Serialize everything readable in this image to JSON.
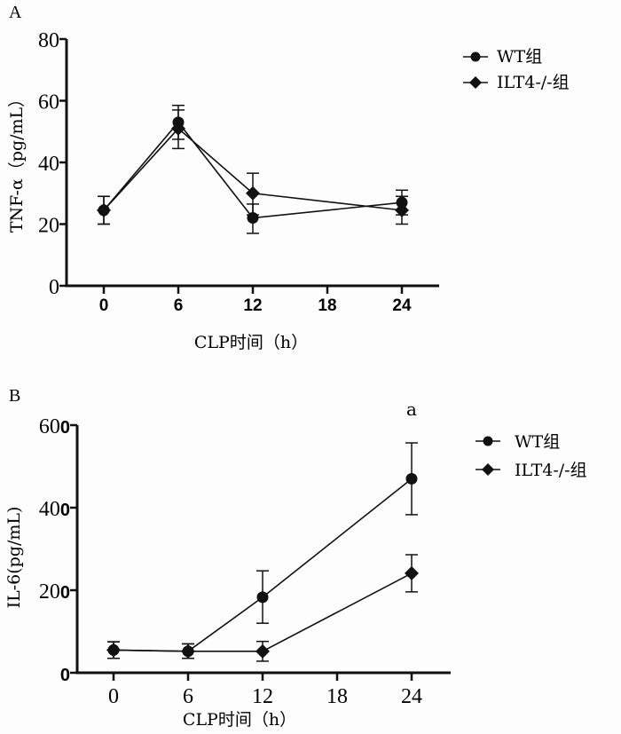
{
  "chart_data": [
    {
      "panel": "A",
      "type": "line",
      "title": "",
      "xlabel": "CLP时间（h）",
      "ylabel": "TNF-α（pg/mL）",
      "xlim": [
        -3,
        28
      ],
      "ylim": [
        0,
        80
      ],
      "xticks": [
        "0",
        "6",
        "12",
        "18",
        "24"
      ],
      "yticks": [
        "0",
        "20",
        "40",
        "60",
        "80"
      ],
      "x": [
        0,
        6,
        12,
        24
      ],
      "series": [
        {
          "name": "WT组",
          "marker": "circle",
          "values": [
            24.5,
            53,
            22,
            27
          ],
          "err_low": [
            20,
            47.5,
            17,
            23
          ],
          "err_high": [
            29,
            58.5,
            26.5,
            31
          ]
        },
        {
          "name": "ILT4-/-组",
          "marker": "diamond",
          "values": [
            24.5,
            51,
            30,
            24.5
          ],
          "err_low": [
            20,
            44.5,
            23,
            20
          ],
          "err_high": [
            29,
            57,
            36.5,
            29
          ]
        }
      ],
      "legend": "top-right",
      "grid": false
    },
    {
      "panel": "B",
      "type": "line",
      "title": "",
      "xlabel": "CLP时间（h）",
      "ylabel": "IL-6(pg/mL)",
      "xlim": [
        -3,
        28
      ],
      "ylim": [
        0,
        600
      ],
      "xticks": [
        "0",
        "6",
        "12",
        "18",
        "24"
      ],
      "yticks": [
        "0",
        "200",
        "400",
        "600"
      ],
      "x": [
        0,
        6,
        12,
        24
      ],
      "series": [
        {
          "name": "WT组",
          "marker": "circle",
          "values": [
            55,
            52,
            183,
            470
          ],
          "err_low": [
            35,
            35,
            120,
            383
          ],
          "err_high": [
            75,
            70,
            247,
            557
          ]
        },
        {
          "name": "ILT4-/-组",
          "marker": "diamond",
          "values": [
            55,
            52,
            52,
            241
          ],
          "err_low": [
            35,
            35,
            28,
            196
          ],
          "err_high": [
            75,
            70,
            76,
            286
          ]
        }
      ],
      "annotations": [
        {
          "x": 24,
          "text": "a"
        }
      ],
      "legend": "top-right",
      "grid": false
    }
  ],
  "colors": {
    "ink": "#111111",
    "background": "#fdfdfd"
  }
}
